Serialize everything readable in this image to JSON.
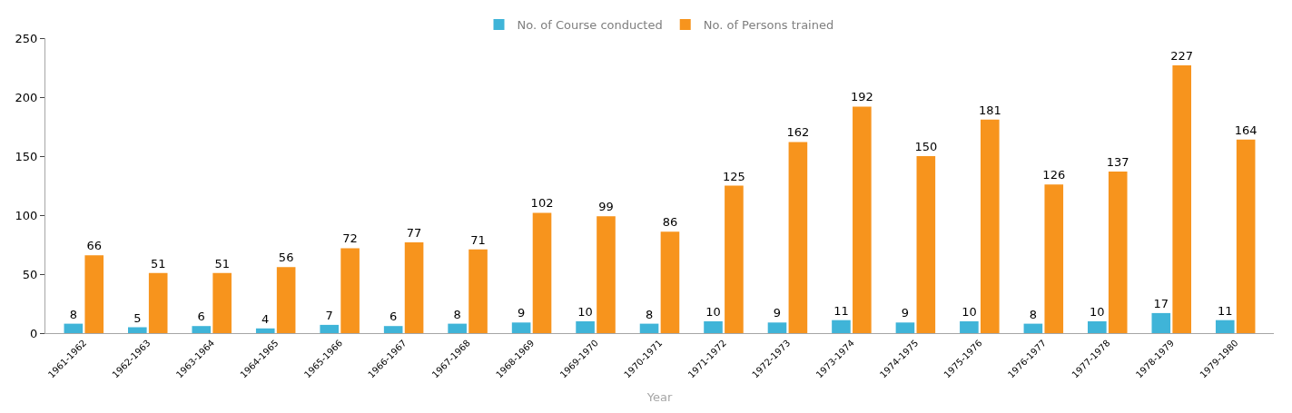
{
  "chart_data": {
    "type": "bar",
    "xlabel": "Year",
    "categories": [
      "1961-1962",
      "1962-1963",
      "1963-1964",
      "1964-1965",
      "1965-1966",
      "1966-1967",
      "1967-1968",
      "1968-1969",
      "1969-1970",
      "1970-1971",
      "1971-1972",
      "1972-1973",
      "1973-1974",
      "1974-1975",
      "1975-1976",
      "1976-1977",
      "1977-1978",
      "1978-1979",
      "1979-1980"
    ],
    "series": [
      {
        "name": "No. of Course conducted",
        "color": "#3fb4d8",
        "values": [
          8,
          5,
          6,
          4,
          7,
          6,
          8,
          9,
          10,
          8,
          10,
          9,
          11,
          9,
          10,
          8,
          10,
          17,
          11
        ]
      },
      {
        "name": "No. of Persons trained",
        "color": "#f7941d",
        "values": [
          66,
          51,
          51,
          56,
          72,
          77,
          71,
          102,
          99,
          86,
          125,
          162,
          192,
          150,
          181,
          126,
          137,
          227,
          164
        ]
      }
    ],
    "ylim": [
      0,
      250
    ],
    "yticks": [
      0,
      50,
      100,
      150,
      200,
      250
    ],
    "data_labels": true,
    "legend": "top"
  }
}
